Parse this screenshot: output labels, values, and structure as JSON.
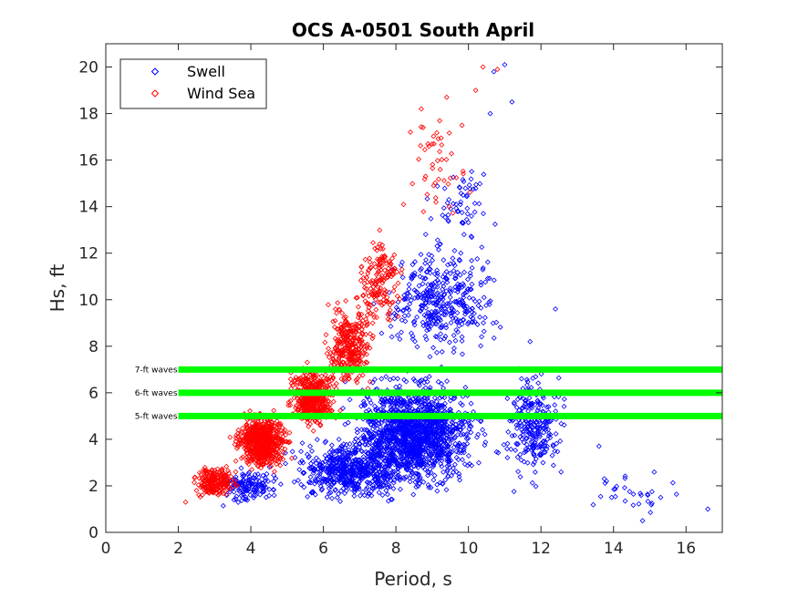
{
  "chart_data": {
    "type": "scatter",
    "title": "OCS A-0501 South April",
    "xlabel": "Period, s",
    "ylabel": "Hs, ft",
    "xlim": [
      0,
      17
    ],
    "ylim": [
      0,
      21
    ],
    "xticks": [
      0,
      2,
      4,
      6,
      8,
      10,
      12,
      14,
      16
    ],
    "yticks": [
      0,
      2,
      4,
      6,
      8,
      10,
      12,
      14,
      16,
      18,
      20
    ],
    "grid": false,
    "legend_position": "top-left",
    "marker": "diamond",
    "series": [
      {
        "name": "Swell",
        "color": "#0000ff",
        "clusters": [
          {
            "x_range": [
              6.0,
              11.0
            ],
            "y_range": [
              1.0,
              7.5
            ],
            "count": 1500
          },
          {
            "x_range": [
              4.5,
              9.0
            ],
            "y_range": [
              0.8,
              4.5
            ],
            "count": 550
          },
          {
            "x_range": [
              7.0,
              11.5
            ],
            "y_range": [
              6.5,
              13.5
            ],
            "count": 380
          },
          {
            "x_range": [
              8.5,
              11.0
            ],
            "y_range": [
              11.0,
              17.0
            ],
            "count": 60
          },
          {
            "x_range": [
              10.5,
              13.0
            ],
            "y_range": [
              1.0,
              8.0
            ],
            "count": 260
          },
          {
            "x_range": [
              2.8,
              5.0
            ],
            "y_range": [
              1.0,
              3.0
            ],
            "count": 140
          },
          {
            "x_range": [
              12.5,
              16.6
            ],
            "y_range": [
              0.5,
              3.0
            ],
            "count": 30
          }
        ],
        "points": [
          {
            "x": 11.0,
            "y": 20.1
          },
          {
            "x": 10.7,
            "y": 19.8
          },
          {
            "x": 11.2,
            "y": 18.5
          },
          {
            "x": 10.6,
            "y": 18.0
          },
          {
            "x": 16.6,
            "y": 1.0
          },
          {
            "x": 15.3,
            "y": 1.5
          },
          {
            "x": 14.8,
            "y": 0.5
          },
          {
            "x": 13.6,
            "y": 3.7
          },
          {
            "x": 12.4,
            "y": 9.6
          },
          {
            "x": 11.7,
            "y": 8.2
          }
        ]
      },
      {
        "name": "Wind Sea",
        "color": "#ff0000",
        "clusters": [
          {
            "x_range": [
              2.2,
              3.8
            ],
            "y_range": [
              1.2,
              3.2
            ],
            "count": 200
          },
          {
            "x_range": [
              3.3,
              5.3
            ],
            "y_range": [
              2.2,
              5.6
            ],
            "count": 650
          },
          {
            "x_range": [
              4.8,
              6.6
            ],
            "y_range": [
              4.0,
              7.6
            ],
            "count": 450
          },
          {
            "x_range": [
              5.8,
              7.6
            ],
            "y_range": [
              5.5,
              10.5
            ],
            "count": 320
          },
          {
            "x_range": [
              6.6,
              8.5
            ],
            "y_range": [
              8.0,
              13.5
            ],
            "count": 160
          },
          {
            "x_range": [
              7.8,
              10.5
            ],
            "y_range": [
              12.0,
              19.0
            ],
            "count": 45
          }
        ],
        "points": [
          {
            "x": 10.4,
            "y": 20.0
          },
          {
            "x": 10.8,
            "y": 19.9
          },
          {
            "x": 10.2,
            "y": 19.0
          },
          {
            "x": 9.4,
            "y": 18.7
          },
          {
            "x": 8.7,
            "y": 18.2
          },
          {
            "x": 2.2,
            "y": 1.3
          },
          {
            "x": 2.5,
            "y": 1.8
          },
          {
            "x": 8.4,
            "y": 17.2
          }
        ]
      }
    ],
    "reference_lines": [
      {
        "label": "7-ft waves",
        "y": 7,
        "x_range": [
          2,
          17
        ],
        "color": "#00ff00"
      },
      {
        "label": "6-ft waves",
        "y": 6,
        "x_range": [
          2,
          17
        ],
        "color": "#00ff00"
      },
      {
        "label": "5-ft waves",
        "y": 5,
        "x_range": [
          2,
          17
        ],
        "color": "#00ff00"
      }
    ]
  }
}
